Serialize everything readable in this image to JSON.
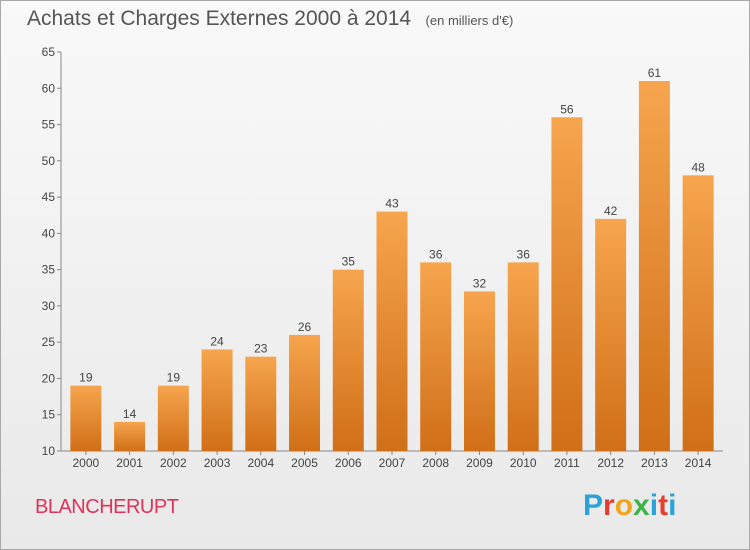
{
  "header": {
    "title": "Achats et Charges Externes 2000 à 2014",
    "unit": "(en milliers d'€)"
  },
  "footer": {
    "commune": "BLANCHERUPT",
    "logo_text": "Proxiti"
  },
  "colors": {
    "bar_light": "#f6a54e",
    "bar_dark": "#d06f17",
    "commune": "#e0335a",
    "logo": [
      "#2aa3d8",
      "#e63d2f",
      "#f2a51a",
      "#3bb54a",
      "#2aa3d8",
      "#e63d2f",
      "#2aa3d8"
    ]
  },
  "chart_data": {
    "type": "bar",
    "title": "Achats et Charges Externes 2000 à 2014",
    "subtitle": "(en milliers d'€)",
    "categories": [
      "2000",
      "2001",
      "2002",
      "2003",
      "2004",
      "2005",
      "2006",
      "2007",
      "2008",
      "2009",
      "2010",
      "2011",
      "2012",
      "2013",
      "2014"
    ],
    "values": [
      19,
      14,
      19,
      24,
      23,
      26,
      35,
      43,
      36,
      32,
      36,
      56,
      42,
      61,
      48
    ],
    "ylim": [
      10,
      65
    ],
    "yticks": [
      10,
      15,
      20,
      25,
      30,
      35,
      40,
      45,
      50,
      55,
      60,
      65
    ],
    "grid": false,
    "data_labels": true
  }
}
